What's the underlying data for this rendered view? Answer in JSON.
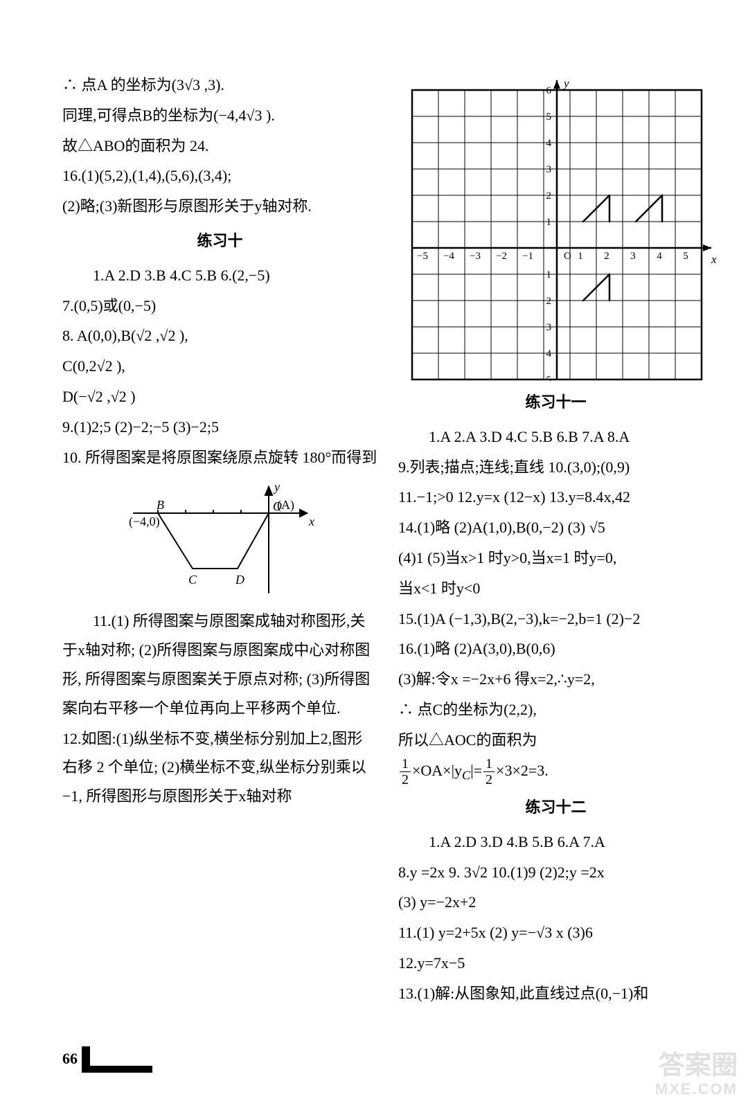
{
  "left": {
    "l1": "∴ 点A 的坐标为(3√3 ,3).",
    "l2": "同理,可得点B的坐标为(−4,4√3 ).",
    "l3": "故△ABO的面积为 24.",
    "l4": "16.(1)(5,2),(1,4),(5,6),(3,4);",
    "l5": "(2)略;(3)新图形与原图形关于y轴对称.",
    "h1": "练习十",
    "l6": "1.A  2.D  3.B  4.C  5.B  6.(2,−5)",
    "l7": "7.(0,5)或(0,−5)",
    "l8": "8. A(0,0),B(√2 ,√2 ),",
    "l9": "C(0,2√2 ),",
    "l10": "D(−√2 ,√2 )",
    "l11": " 9.(1)2;5  (2)−2;−5  (3)−2;5",
    "l12": "10. 所得图案是将原图案绕原点旋转 180°而得到",
    "l13": "11.(1) 所得图案与原图案成轴对称图形,关于x轴对称;   (2)所得图案与原图案成中心对称图形, 所得图案与原图案关于原点对称;   (3)所得图案向右平移一个单位再向上平移两个单位.",
    "l14": "12.如图:(1)纵坐标不变,横坐标分别加上2,图形右移 2 个单位;   (2)横坐标不变,纵坐标分别乘以−1, 所得图形与原图形关于x轴对称"
  },
  "right": {
    "h2": "练习十一",
    "r1": "1.A  2.A  3.D  4.C  5.B  6.B  7.A  8.A",
    "r2": "9.列表;描点;连线;直线   10.(3,0);(0,9)",
    "r3": "11.−1;>0      12.y=x (12−x)     13.y=8.4x,42",
    "r4": "14.(1)略   (2)A(1,0),B(0,−2)   (3) √5",
    "r5": "(4)1  (5)当x>1 时y>0,当x=1 时y=0,",
    "r6": "当x<1 时y<0",
    "r7": "15.(1)A (−1,3),B(2,−3),k=−2,b=1  (2)−2",
    "r8": "16.(1)略   (2)A(3,0),B(0,6)",
    "r9": "(3)解:令x =−2x+6 得x=2,∴y=2,",
    "r10": "∴ 点C的坐标为(2,2),",
    "r11": "所以△AOC的面积为",
    "r12a": "×OA×|y",
    "r12b": "|=",
    "r12c": "×3×2=3.",
    "h3": "练习十二",
    "r13": "1.A  2.D  3.D  4.B  5.B  6.A  7.A",
    "r14": "8.y =2x    9. 3√2     10.(1)9     (2)2;y =2x",
    "r15": "(3) y=−2x+2",
    "r16": "11.(1) y=2+5x  (2) y=−√3 x   (3)6",
    "r17": "12.y=7x−5",
    "r18": "13.(1)解:从图象知,此直线过点(0,−1)和"
  },
  "page_number": "66",
  "watermark_top": "答案圈",
  "watermark_sub": "MXE.COM",
  "grid_chart": {
    "x_ticks": [
      "−5",
      "−4",
      "−3",
      "−2",
      "−1",
      "1",
      "2",
      "3",
      "4",
      "5"
    ],
    "y_ticks_pos": [
      "1",
      "2",
      "3",
      "4",
      "5",
      "6"
    ],
    "y_ticks_neg": [
      "−1",
      "−2",
      "−3",
      "−4",
      "−5"
    ],
    "origin_label": "O",
    "axis_x_label": "x",
    "axis_y_label": "y",
    "cell_size": 38,
    "line_color": "#000",
    "shapes": [
      {
        "type": "polyline",
        "points": [
          [
            1,
            1
          ],
          [
            2,
            2
          ],
          [
            2,
            1
          ]
        ]
      },
      {
        "type": "polyline",
        "points": [
          [
            3,
            1
          ],
          [
            4,
            2
          ],
          [
            4,
            1
          ]
        ]
      },
      {
        "type": "polyline",
        "points": [
          [
            1,
            -2
          ],
          [
            2,
            -1
          ],
          [
            2,
            -2
          ]
        ]
      }
    ]
  },
  "trapezoid_chart": {
    "axis_x_label": "x",
    "axis_y_label": "y",
    "origin_label": "O",
    "point_A": "(A)",
    "point_B": "B",
    "point_C": "C",
    "point_D": "D",
    "label_neg4": "(−4,0)",
    "tick_count_neg": 4,
    "line_color": "#000"
  }
}
